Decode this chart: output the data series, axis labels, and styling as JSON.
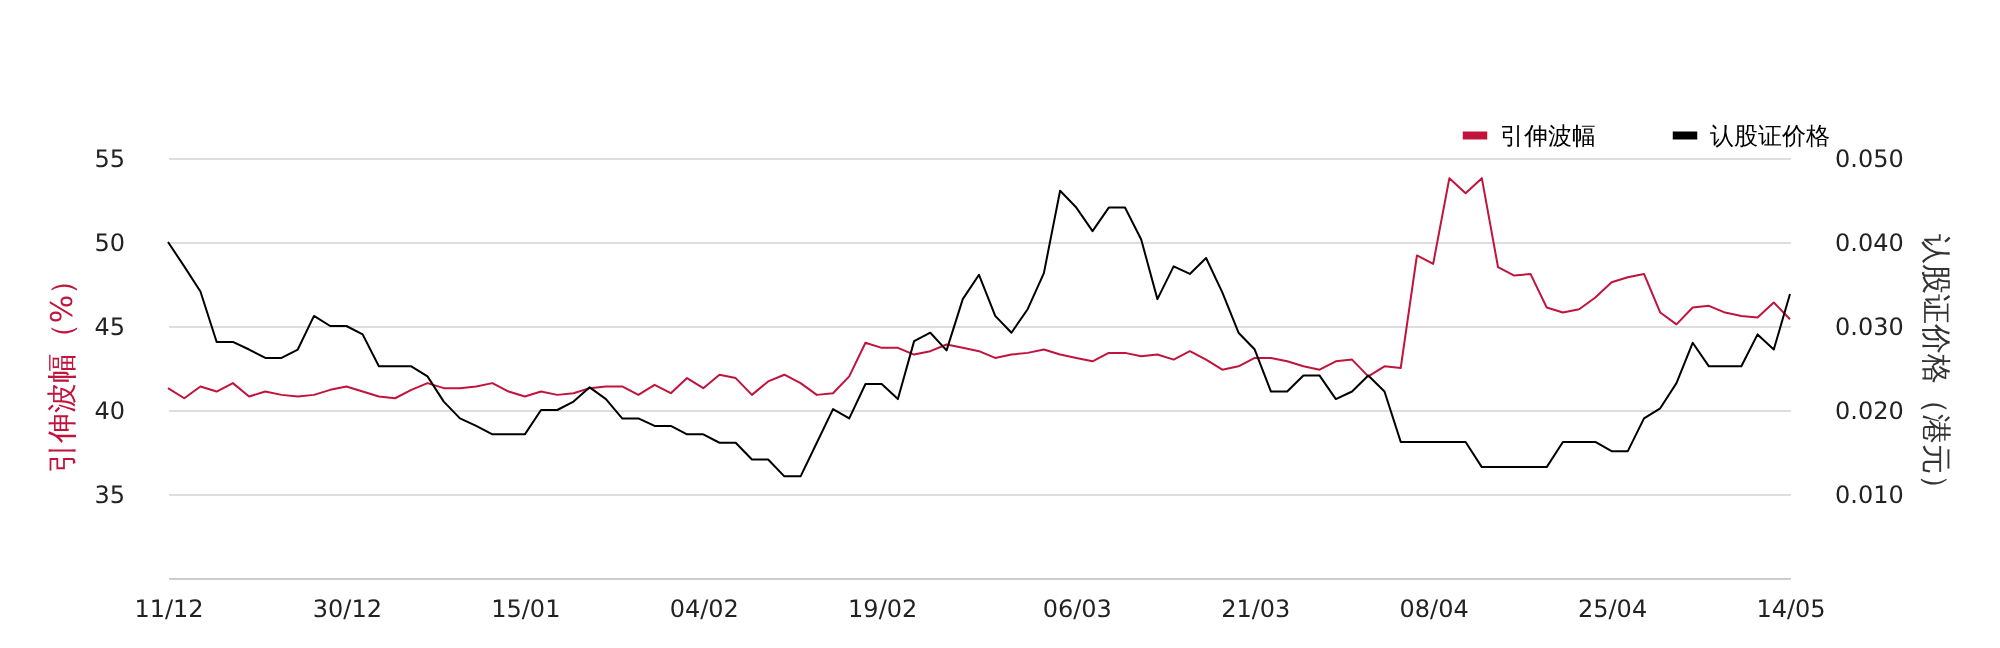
{
  "chart_data": {
    "type": "line",
    "categories": [
      "11/12",
      null,
      null,
      null,
      null,
      null,
      null,
      null,
      null,
      null,
      null,
      "30/12",
      null,
      null,
      null,
      null,
      null,
      null,
      null,
      null,
      null,
      null,
      "15/01",
      null,
      null,
      null,
      null,
      null,
      null,
      null,
      null,
      null,
      null,
      "04/02",
      null,
      null,
      null,
      null,
      null,
      null,
      null,
      null,
      null,
      null,
      "19/02",
      null,
      null,
      null,
      null,
      null,
      null,
      null,
      null,
      null,
      null,
      null,
      "06/03",
      null,
      null,
      null,
      null,
      null,
      null,
      null,
      null,
      null,
      null,
      "21/03",
      null,
      null,
      null,
      null,
      null,
      null,
      null,
      null,
      null,
      null,
      "08/04",
      null,
      null,
      null,
      null,
      null,
      null,
      null,
      null,
      null,
      null,
      "25/04",
      null,
      null,
      null,
      null,
      null,
      null,
      null,
      null,
      null,
      null,
      "14/05"
    ],
    "ylabel": "引伸波幅（%）",
    "y2label": "认股证价格（港元）",
    "ylim": [
      30,
      55
    ],
    "yticks": [
      35,
      40,
      45,
      50,
      55
    ],
    "y2lim": [
      0,
      0.05
    ],
    "y2ticks": [
      {
        "value": 0.01,
        "label": "0.010"
      },
      {
        "value": 0.02,
        "label": "0.020"
      },
      {
        "value": 0.03,
        "label": "0.030"
      },
      {
        "value": 0.04,
        "label": "0.040"
      },
      {
        "value": 0.05,
        "label": "0.050"
      }
    ],
    "grid": "y",
    "legend": "top right",
    "line_style": "solid",
    "marker": "none",
    "series": [
      {
        "name": "引伸波幅",
        "color": "#c0143c",
        "values": [
          41.3,
          40.7,
          41.4,
          41.1,
          41.6,
          40.8,
          41.1,
          40.9,
          40.8,
          40.9,
          41.2,
          41.4,
          41.1,
          40.8,
          40.7,
          41.2,
          41.6,
          41.3,
          41.3,
          41.4,
          41.6,
          41.1,
          40.8,
          41.1,
          40.9,
          41.0,
          41.3,
          41.4,
          41.4,
          40.9,
          41.5,
          41.0,
          41.9,
          41.3,
          42.1,
          41.9,
          40.9,
          41.7,
          42.1,
          41.6,
          40.9,
          41.0,
          42.0,
          44.0,
          43.7,
          43.7,
          43.3,
          43.5,
          43.9,
          43.7,
          43.5,
          43.1,
          43.3,
          43.4,
          43.6,
          43.3,
          43.1,
          42.9,
          43.4,
          43.4,
          43.2,
          43.3,
          43.0,
          43.5,
          43.0,
          42.4,
          42.6,
          43.1,
          43.1,
          42.9,
          42.6,
          42.4,
          42.9,
          43.0,
          42.0,
          42.6,
          42.5,
          49.2,
          48.7,
          53.8,
          52.9,
          53.8,
          48.5,
          48.0,
          48.1,
          46.1,
          45.8,
          46.0,
          46.7,
          47.6,
          47.9,
          48.1,
          45.8,
          45.1,
          46.1,
          46.2,
          45.8,
          45.6,
          45.5,
          46.4,
          45.4
        ]
      },
      {
        "name": "认股证价格",
        "color": "#000000",
        "axis": "y2",
        "values": [
          0.04,
          0.0371,
          0.0341,
          0.0281,
          0.0281,
          0.0272,
          0.0262,
          0.0262,
          0.0272,
          0.0312,
          0.03,
          0.03,
          0.029,
          0.0252,
          0.0252,
          0.0252,
          0.024,
          0.021,
          0.019,
          0.0181,
          0.0171,
          0.0171,
          0.0171,
          0.02,
          0.02,
          0.021,
          0.0227,
          0.0213,
          0.019,
          0.019,
          0.0181,
          0.0181,
          0.0171,
          0.0171,
          0.0161,
          0.0161,
          0.0141,
          0.0141,
          0.0121,
          0.0121,
          0.0161,
          0.0201,
          0.019,
          0.0231,
          0.0231,
          0.0213,
          0.0282,
          0.0292,
          0.0271,
          0.0332,
          0.0361,
          0.0312,
          0.0292,
          0.032,
          0.0363,
          0.0461,
          0.0441,
          0.0413,
          0.0441,
          0.0441,
          0.0403,
          0.0332,
          0.0371,
          0.0362,
          0.0381,
          0.034,
          0.0292,
          0.0272,
          0.0222,
          0.0222,
          0.0241,
          0.0241,
          0.0213,
          0.0222,
          0.0241,
          0.0222,
          0.0162,
          0.0162,
          0.0162,
          0.0162,
          0.0162,
          0.0132,
          0.0132,
          0.0132,
          0.0132,
          0.0132,
          0.0162,
          0.0162,
          0.0162,
          0.0151,
          0.0151,
          0.019,
          0.0202,
          0.0232,
          0.028,
          0.0252,
          0.0252,
          0.0252,
          0.029,
          0.0272,
          0.0338
        ]
      }
    ]
  }
}
